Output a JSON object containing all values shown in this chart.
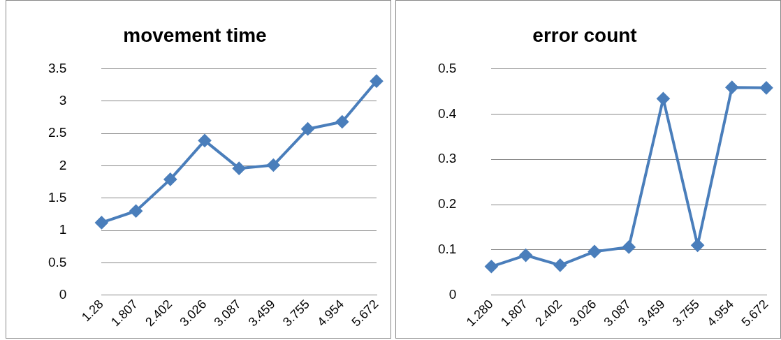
{
  "chart_data": [
    {
      "type": "line",
      "title": "movement time",
      "categories": [
        "1.28",
        "1.807",
        "2.402",
        "3.026",
        "3.087",
        "3.459",
        "3.755",
        "4.954",
        "5.672"
      ],
      "series": [
        {
          "color": "#4a7ebb",
          "values": [
            1.12,
            1.3,
            1.79,
            2.39,
            1.96,
            2.01,
            2.57,
            2.68,
            3.31
          ]
        }
      ],
      "ylim": [
        0,
        3.5
      ],
      "yticks": [
        0,
        0.5,
        1,
        1.5,
        2,
        2.5,
        3,
        3.5
      ],
      "grid": "y",
      "legend": false,
      "marker": "diamond",
      "line_style": "solid"
    },
    {
      "type": "line",
      "title": "error count",
      "categories": [
        "1.280",
        "1.807",
        "2.402",
        "3.026",
        "3.087",
        "3.459",
        "3.755",
        "4.954",
        "5.672"
      ],
      "series": [
        {
          "color": "#4a7ebb",
          "values": [
            0.063,
            0.088,
            0.066,
            0.096,
            0.106,
            0.434,
            0.11,
            0.459,
            0.458
          ]
        }
      ],
      "ylim": [
        0,
        0.5
      ],
      "yticks": [
        0,
        0.1,
        0.2,
        0.3,
        0.4,
        0.5
      ],
      "grid": "y",
      "legend": false,
      "marker": "diamond",
      "line_style": "solid"
    }
  ]
}
